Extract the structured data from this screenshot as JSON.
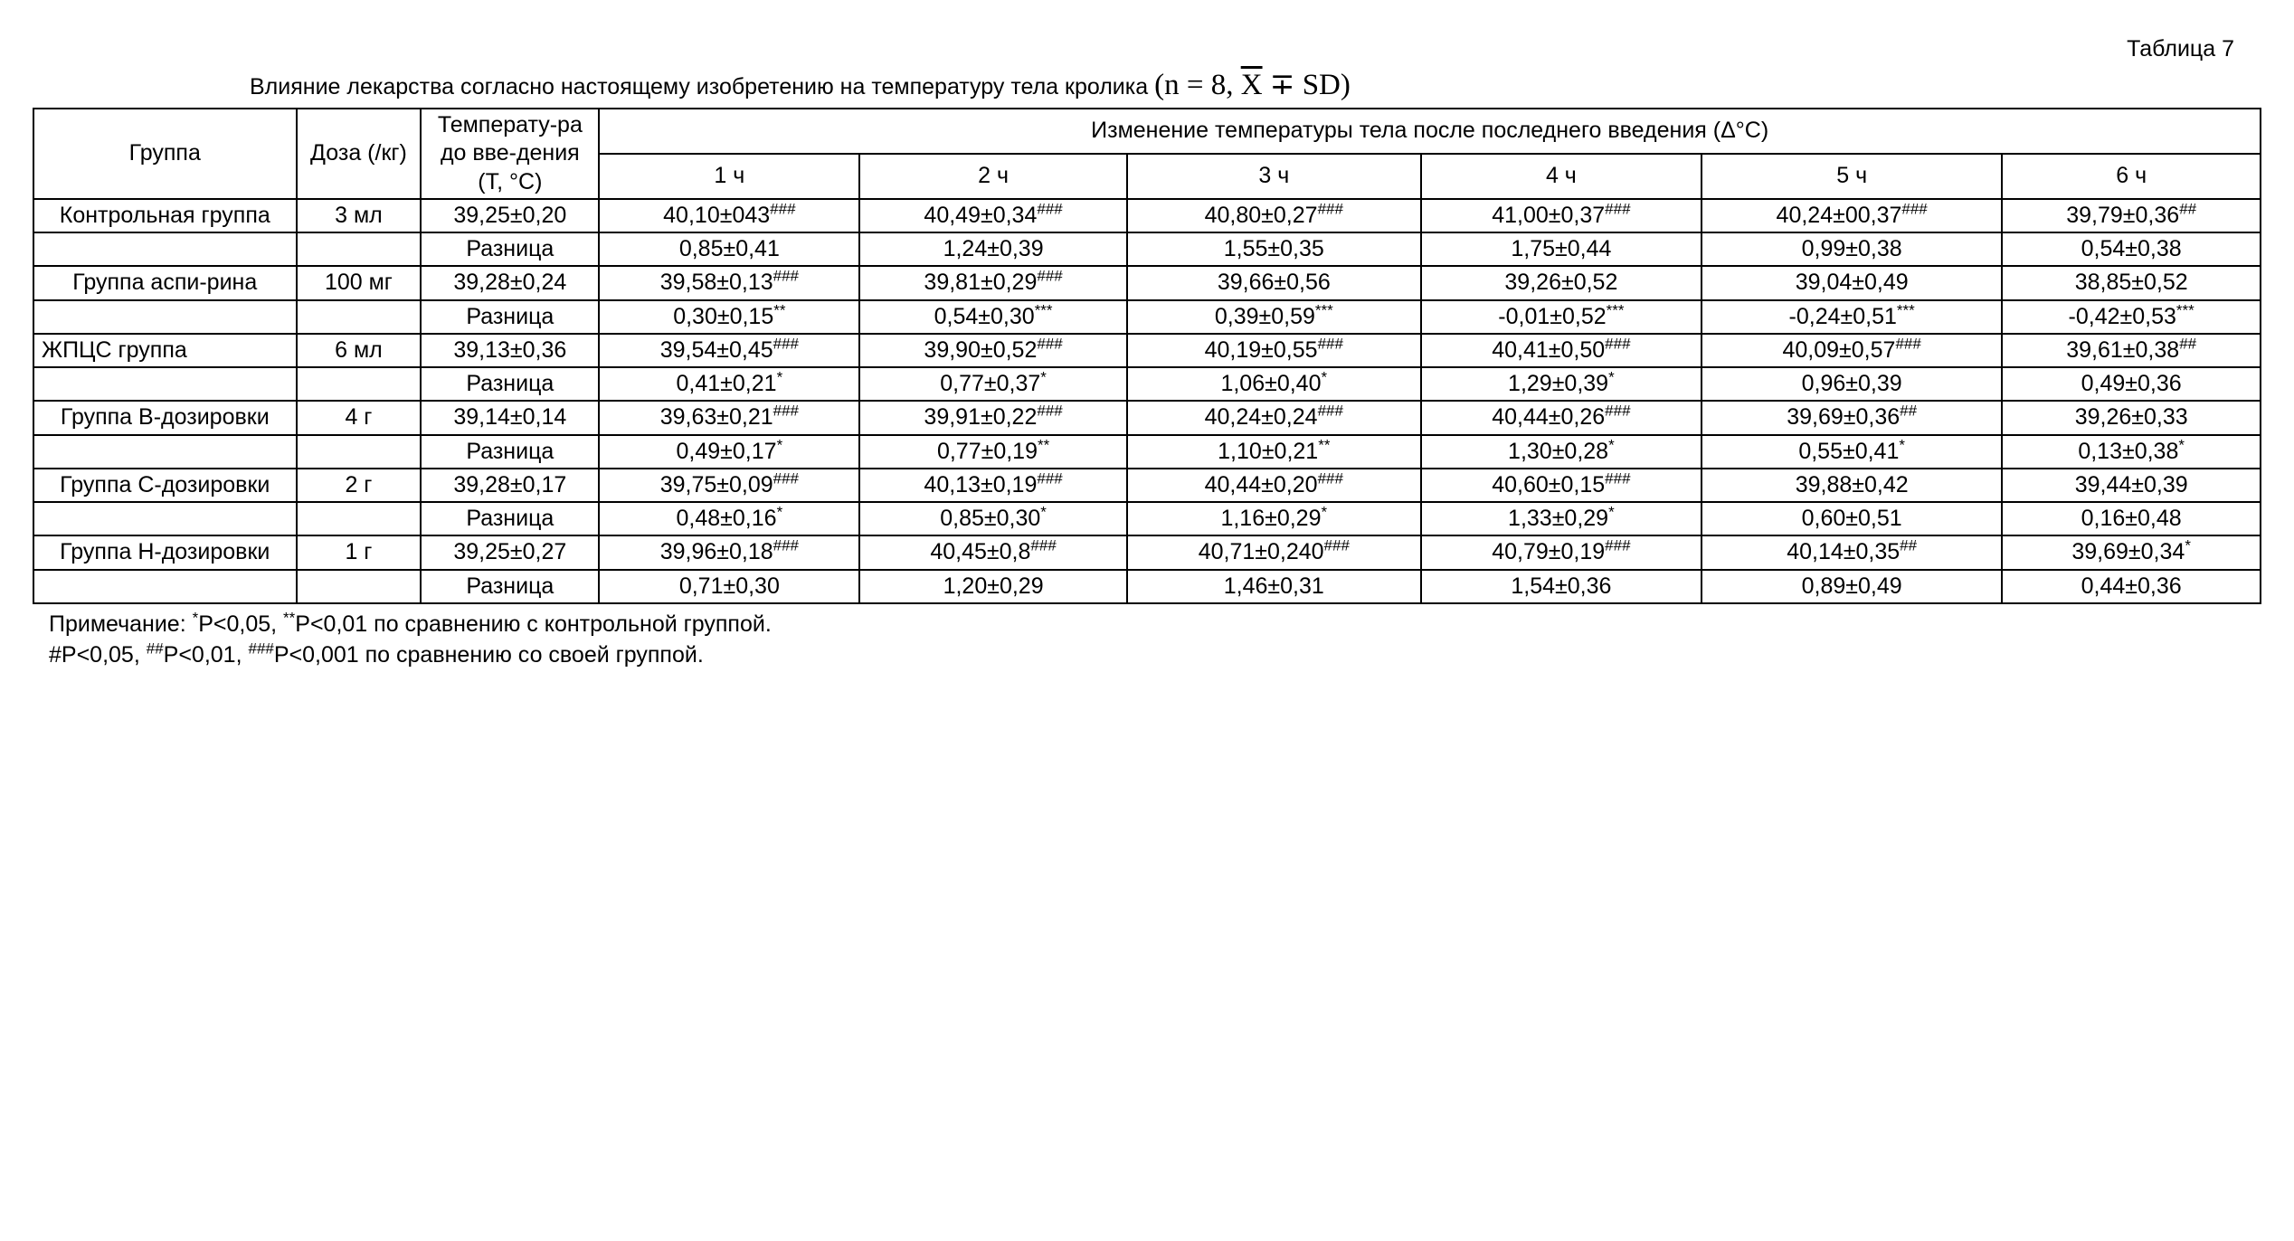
{
  "table_label": "Таблица 7",
  "caption_text": "Влияние лекарства согласно настоящему изобретению на температуру тела кролика ",
  "formula_prefix": "(n = 8, ",
  "formula_x": "X",
  "formula_pm": " ∓ SD",
  "formula_suffix": ")",
  "headers": {
    "group": "Группа",
    "dose": "Доза (/кг)",
    "temp": "Температу-ра до вве-дения (Т, °С)",
    "change": "Изменение температуры тела после последнего введения (Δ°С)",
    "h1": "1 ч",
    "h2": "2 ч",
    "h3": "3 ч",
    "h4": "4 ч",
    "h5": "5 ч",
    "h6": "6 ч"
  },
  "diff_label": "Разница",
  "groups": [
    {
      "name": "Контрольная группа",
      "dose": "3 мл",
      "baseline": "39,25±0,20",
      "vals": [
        {
          "v": "40,10±043",
          "s": "###"
        },
        {
          "v": "40,49±0,34",
          "s": "###"
        },
        {
          "v": "40,80±0,27",
          "s": "###"
        },
        {
          "v": "41,00±0,37",
          "s": "###"
        },
        {
          "v": "40,24±00,37",
          "s": "###"
        },
        {
          "v": "39,79±0,36",
          "s": "##"
        }
      ],
      "diff": [
        {
          "v": "0,85±0,41",
          "s": ""
        },
        {
          "v": "1,24±0,39",
          "s": ""
        },
        {
          "v": "1,55±0,35",
          "s": ""
        },
        {
          "v": "1,75±0,44",
          "s": ""
        },
        {
          "v": "0,99±0,38",
          "s": ""
        },
        {
          "v": "0,54±0,38",
          "s": ""
        }
      ]
    },
    {
      "name": "Группа аспи-рина",
      "dose": "100 мг",
      "baseline": "39,28±0,24",
      "vals": [
        {
          "v": "39,58±0,13",
          "s": "###"
        },
        {
          "v": "39,81±0,29",
          "s": "###"
        },
        {
          "v": "39,66±0,56",
          "s": ""
        },
        {
          "v": "39,26±0,52",
          "s": ""
        },
        {
          "v": "39,04±0,49",
          "s": ""
        },
        {
          "v": "38,85±0,52",
          "s": ""
        }
      ],
      "diff": [
        {
          "v": "0,30±0,15",
          "s": "**"
        },
        {
          "v": "0,54±0,30",
          "s": "***"
        },
        {
          "v": "0,39±0,59",
          "s": "***"
        },
        {
          "v": "-0,01±0,52",
          "s": "***"
        },
        {
          "v": "-0,24±0,51",
          "s": "***"
        },
        {
          "v": "-0,42±0,53",
          "s": "***"
        }
      ]
    },
    {
      "name": "ЖПЦС группа",
      "dose": "6 мл",
      "baseline": "39,13±0,36",
      "vals": [
        {
          "v": "39,54±0,45",
          "s": "###"
        },
        {
          "v": "39,90±0,52",
          "s": "###"
        },
        {
          "v": "40,19±0,55",
          "s": "###"
        },
        {
          "v": "40,41±0,50",
          "s": "###"
        },
        {
          "v": "40,09±0,57",
          "s": "###"
        },
        {
          "v": "39,61±0,38",
          "s": "##"
        }
      ],
      "diff": [
        {
          "v": "0,41±0,21",
          "s": "*"
        },
        {
          "v": "0,77±0,37",
          "s": "*"
        },
        {
          "v": "1,06±0,40",
          "s": "*"
        },
        {
          "v": "1,29±0,39",
          "s": "*"
        },
        {
          "v": "0,96±0,39",
          "s": ""
        },
        {
          "v": "0,49±0,36",
          "s": ""
        }
      ]
    },
    {
      "name": "Группа В-дозировки",
      "dose": "4 г",
      "baseline": "39,14±0,14",
      "vals": [
        {
          "v": "39,63±0,21",
          "s": "###"
        },
        {
          "v": "39,91±0,22",
          "s": "###"
        },
        {
          "v": "40,24±0,24",
          "s": "###"
        },
        {
          "v": "40,44±0,26",
          "s": "###"
        },
        {
          "v": "39,69±0,36",
          "s": "##"
        },
        {
          "v": "39,26±0,33",
          "s": ""
        }
      ],
      "diff": [
        {
          "v": "0,49±0,17",
          "s": "*"
        },
        {
          "v": "0,77±0,19",
          "s": "**"
        },
        {
          "v": "1,10±0,21",
          "s": "**"
        },
        {
          "v": "1,30±0,28",
          "s": "*"
        },
        {
          "v": "0,55±0,41",
          "s": "*"
        },
        {
          "v": "0,13±0,38",
          "s": "*"
        }
      ]
    },
    {
      "name": "Группа С-дозировки",
      "dose": "2 г",
      "baseline": "39,28±0,17",
      "vals": [
        {
          "v": "39,75±0,09",
          "s": "###"
        },
        {
          "v": "40,13±0,19",
          "s": "###"
        },
        {
          "v": "40,44±0,20",
          "s": "###"
        },
        {
          "v": "40,60±0,15",
          "s": "###"
        },
        {
          "v": "39,88±0,42",
          "s": ""
        },
        {
          "v": "39,44±0,39",
          "s": ""
        }
      ],
      "diff": [
        {
          "v": "0,48±0,16",
          "s": "*"
        },
        {
          "v": "0,85±0,30",
          "s": "*"
        },
        {
          "v": "1,16±0,29",
          "s": "*"
        },
        {
          "v": "1,33±0,29",
          "s": "*"
        },
        {
          "v": "0,60±0,51",
          "s": ""
        },
        {
          "v": "0,16±0,48",
          "s": ""
        }
      ]
    },
    {
      "name": "Группа Н-дозировки",
      "dose": "1 г",
      "baseline": "39,25±0,27",
      "vals": [
        {
          "v": "39,96±0,18",
          "s": "###"
        },
        {
          "v": "40,45±0,8",
          "s": "###"
        },
        {
          "v": "40,71±0,240",
          "s": "###"
        },
        {
          "v": "40,79±0,19",
          "s": "###"
        },
        {
          "v": "40,14±0,35",
          "s": "##"
        },
        {
          "v": "39,69±0,34",
          "s": "*"
        }
      ],
      "diff": [
        {
          "v": "0,71±0,30",
          "s": ""
        },
        {
          "v": "1,20±0,29",
          "s": ""
        },
        {
          "v": "1,46±0,31",
          "s": ""
        },
        {
          "v": "1,54±0,36",
          "s": ""
        },
        {
          "v": "0,89±0,49",
          "s": ""
        },
        {
          "v": "0,44±0,36",
          "s": ""
        }
      ]
    }
  ],
  "footnote": {
    "line1_a": "Примечание: ",
    "line1_s1": "*",
    "line1_b": "P<0,05, ",
    "line1_s2": "**",
    "line1_c": "P<0,01 по сравнению с контрольной группой.",
    "line2_a": "#P<0,05, ",
    "line2_s1": "##",
    "line2_b": "P<0,01, ",
    "line2_s2": "###",
    "line2_c": "P<0,001 по сравнению со своей группой."
  }
}
